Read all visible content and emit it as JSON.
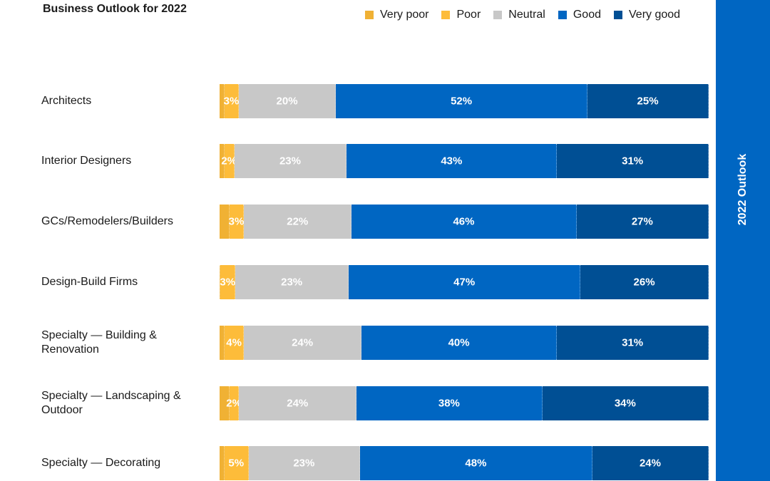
{
  "chart_data": {
    "type": "bar",
    "orientation": "horizontal",
    "stacked": true,
    "title": "Business Outlook for 2022",
    "side_label": "2022 Outlook",
    "legend_position": "top-right",
    "categories": [
      "Architects",
      "Interior Designers",
      "GCs/Remodelers/Builders",
      "Design-Build Firms",
      "Specialty — Building & Renovation",
      "Specialty — Landscaping & Outdoor",
      "Specialty — Decorating"
    ],
    "series": [
      {
        "name": "Very poor",
        "color": "#f0b134",
        "values": [
          1,
          1,
          2,
          0.2,
          1,
          2,
          1
        ],
        "labels_shown": false
      },
      {
        "name": "Poor",
        "color": "#fdbc3a",
        "values": [
          3,
          2,
          3,
          3,
          4,
          2,
          5
        ],
        "labels_shown": true
      },
      {
        "name": "Neutral",
        "color": "#c8c8c8",
        "values": [
          20,
          23,
          22,
          23,
          24,
          24,
          23
        ],
        "labels_shown": true
      },
      {
        "name": "Good",
        "color": "#0066c2",
        "values": [
          52,
          43,
          46,
          47,
          40,
          38,
          48
        ],
        "labels_shown": true
      },
      {
        "name": "Very good",
        "color": "#004f94",
        "values": [
          25,
          31,
          27,
          26,
          31,
          34,
          24
        ],
        "labels_shown": true
      }
    ],
    "value_suffix": "%",
    "grid": false
  }
}
